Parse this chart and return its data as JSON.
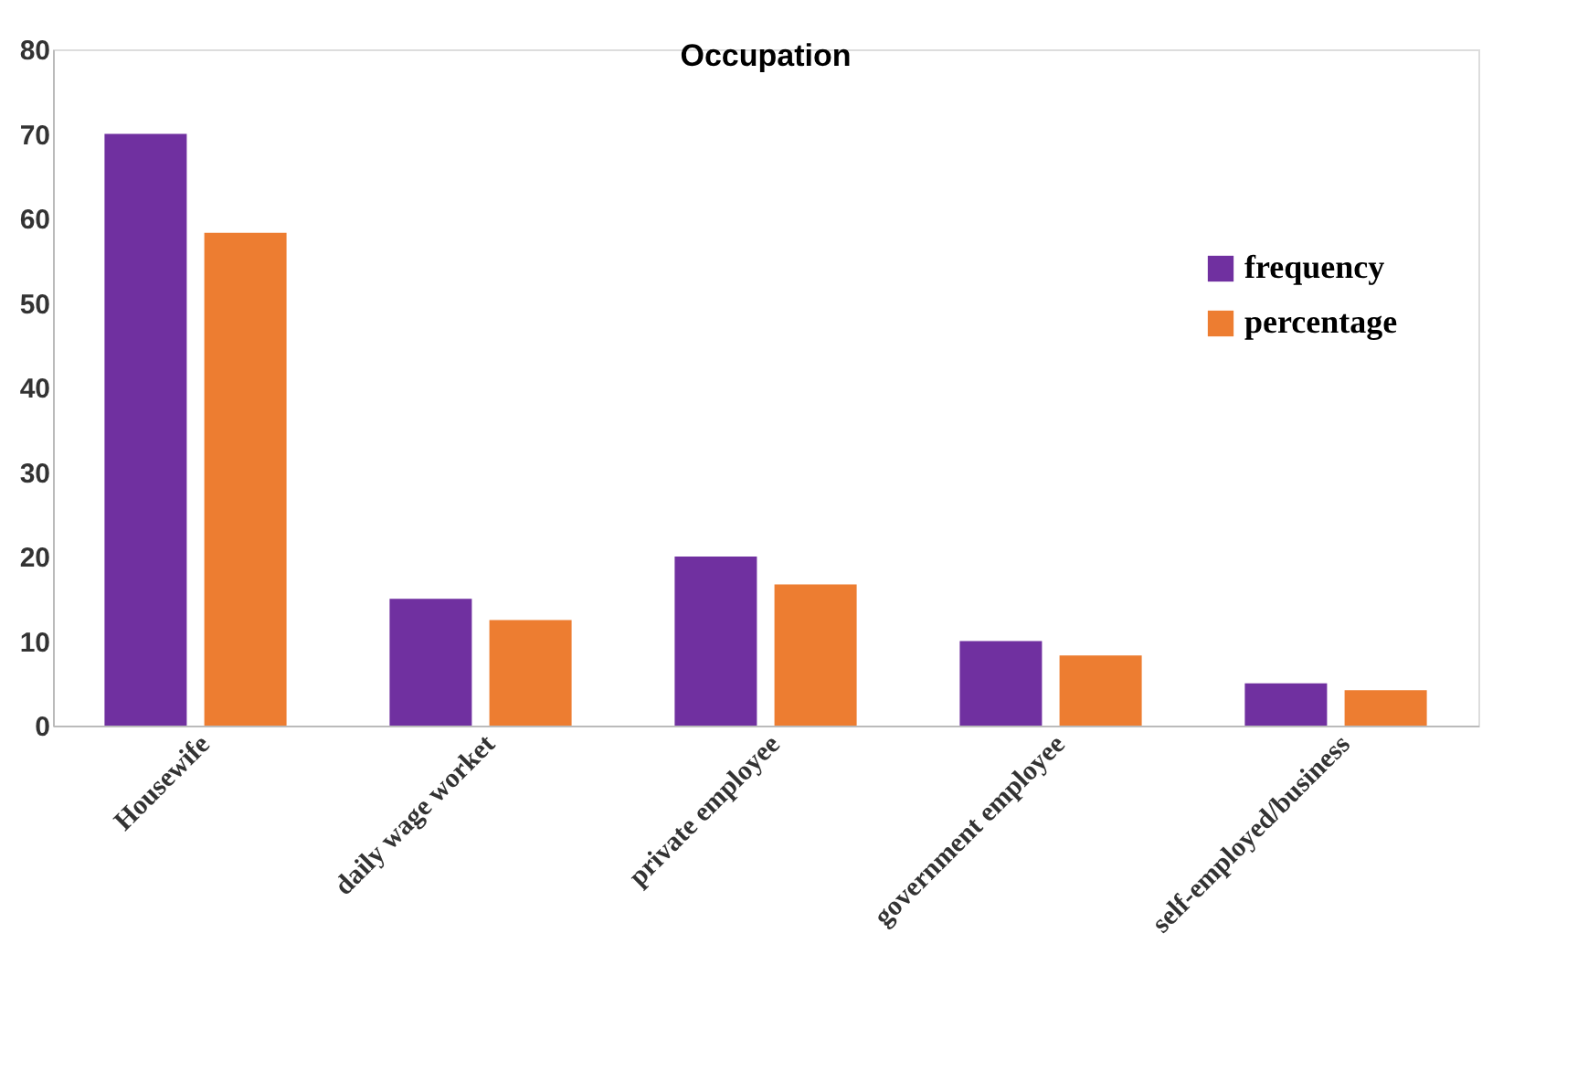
{
  "chart_data": {
    "type": "bar",
    "title": "Occupation",
    "categories": [
      "Housewife",
      "daily wage worket",
      "private employee",
      "government employee",
      "self-employed/business"
    ],
    "series": [
      {
        "name": "frequency",
        "color": "#7030a0",
        "values": [
          70,
          15,
          20,
          10,
          5
        ]
      },
      {
        "name": "percentage",
        "color": "#ed7d31",
        "values": [
          58.3,
          12.5,
          16.7,
          8.3,
          4.2
        ]
      }
    ],
    "ylim": [
      0,
      80
    ],
    "yticks": [
      0,
      10,
      20,
      30,
      40,
      50,
      60,
      70,
      80
    ],
    "grid": false,
    "legend": "right"
  }
}
